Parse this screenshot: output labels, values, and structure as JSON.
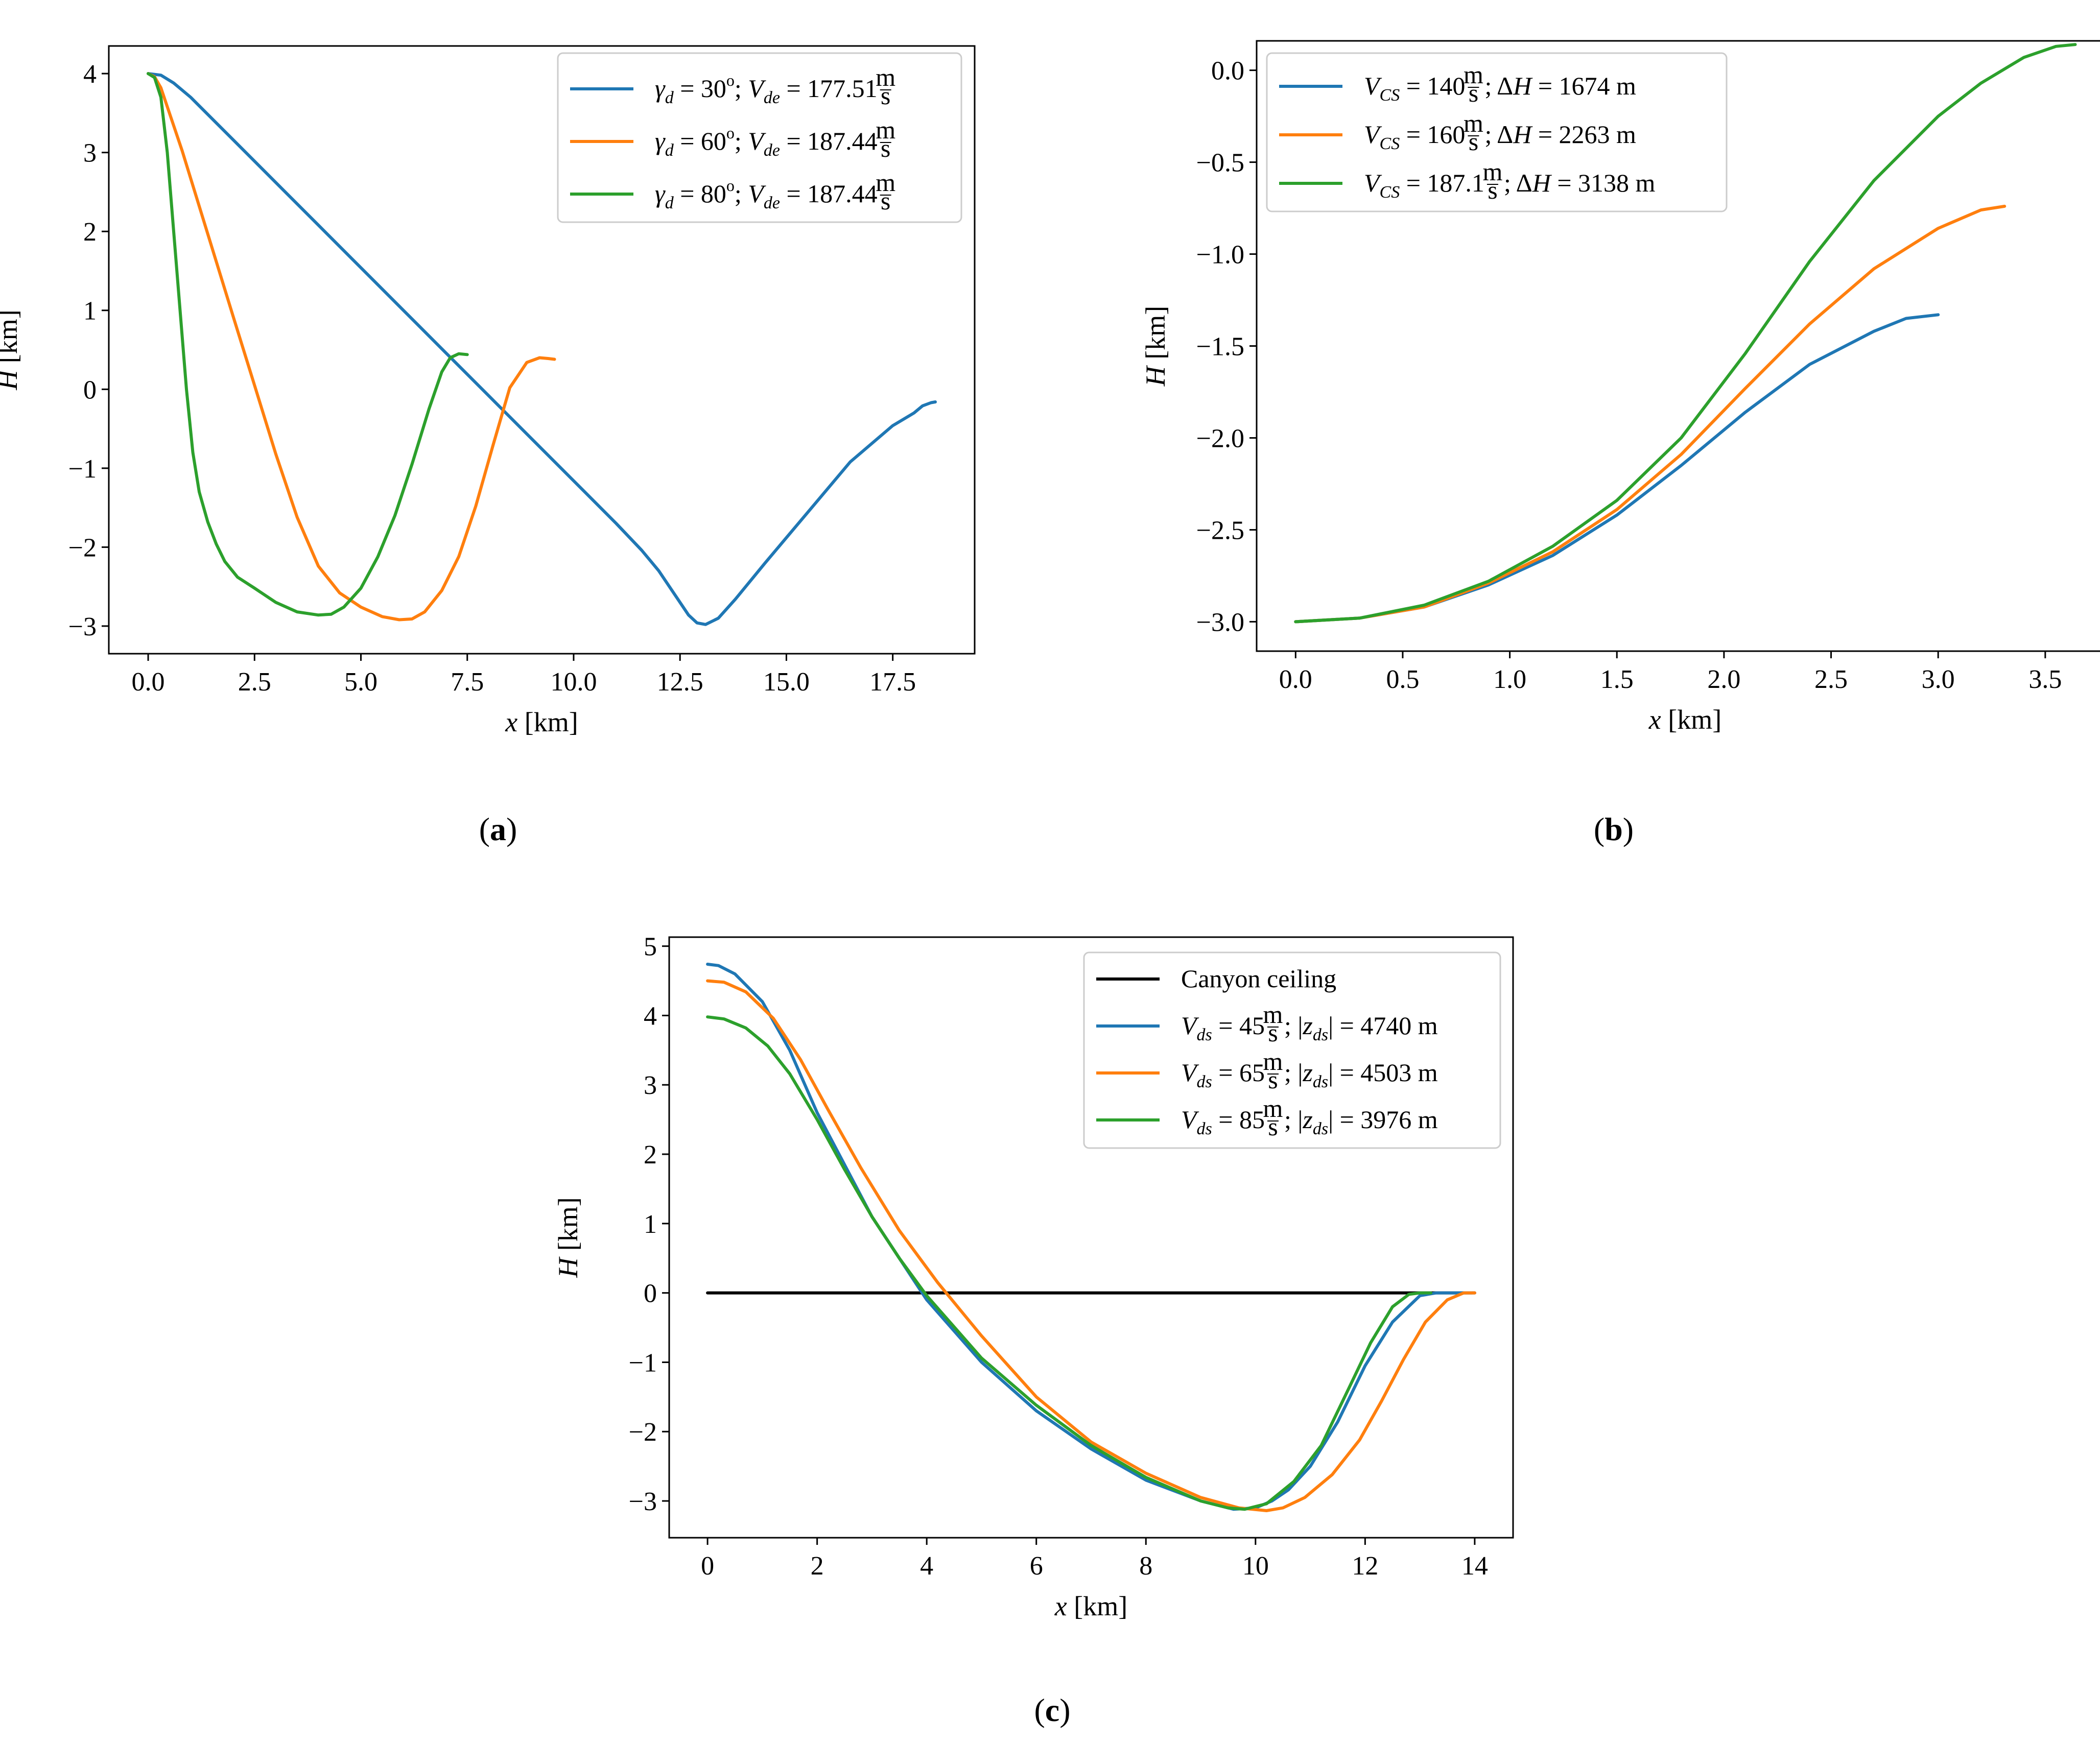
{
  "figure": {
    "colors": {
      "blue": "#1f77b4",
      "orange": "#ff7f0e",
      "green": "#2ca02c",
      "black": "#000000"
    }
  },
  "chart_data": [
    {
      "id": "a",
      "type": "line",
      "panel_label": {
        "open": "(",
        "letter": "a",
        "close": ")"
      },
      "xlabel": {
        "var": "x",
        "unit": "[km]"
      },
      "ylabel": {
        "var": "H",
        "unit": "[km]"
      },
      "xlim": [
        -0.925,
        19.425
      ],
      "ylim": [
        -3.35,
        4.35
      ],
      "xticks": [
        0,
        2.5,
        5,
        7.5,
        10,
        12.5,
        15,
        17.5
      ],
      "xtick_labels": [
        "0.0",
        "2.5",
        "5.0",
        "7.5",
        "10.0",
        "12.5",
        "15.0",
        "17.5"
      ],
      "yticks": [
        -3,
        -2,
        -1,
        0,
        1,
        2,
        3,
        4
      ],
      "ytick_labels": [
        "−3",
        "−2",
        "−1",
        "0",
        "1",
        "2",
        "3",
        "4"
      ],
      "legend_position": "top-right",
      "series": [
        {
          "name": "γd=30°; Vde=177.51 m/s",
          "legend": {
            "sym": "γ",
            "sub": "d",
            "eq1": " = 30",
            "deg": "o",
            "sep": "; ",
            "sym2": "V",
            "sub2": "de",
            "eq2": " = 177.51 ",
            "frac_num": "m",
            "frac_den": "s",
            "tail": ""
          },
          "color": "blue",
          "x": [
            0,
            0.3,
            0.6,
            1,
            2,
            3,
            4,
            5,
            6,
            7,
            8,
            9,
            10,
            11,
            11.6,
            12,
            12.4,
            12.7,
            12.9,
            13.1,
            13.4,
            13.8,
            14.5,
            15.5,
            16.5,
            17.5,
            18,
            18.2,
            18.4,
            18.5
          ],
          "y": [
            4,
            3.98,
            3.88,
            3.7,
            3.16,
            2.62,
            2.08,
            1.54,
            1.0,
            0.46,
            -0.08,
            -0.62,
            -1.16,
            -1.7,
            -2.04,
            -2.3,
            -2.62,
            -2.86,
            -2.96,
            -2.98,
            -2.9,
            -2.66,
            -2.2,
            -1.56,
            -0.92,
            -0.46,
            -0.3,
            -0.21,
            -0.17,
            -0.16
          ]
        },
        {
          "name": "γd=60°; Vde=187.44 m/s",
          "legend": {
            "sym": "γ",
            "sub": "d",
            "eq1": " = 60",
            "deg": "o",
            "sep": "; ",
            "sym2": "V",
            "sub2": "de",
            "eq2": " = 187.44 ",
            "frac_num": "m",
            "frac_den": "s",
            "tail": ""
          },
          "color": "orange",
          "x": [
            0,
            0.15,
            0.3,
            0.5,
            0.8,
            1.2,
            1.6,
            2,
            2.5,
            3,
            3.5,
            4,
            4.5,
            5,
            5.5,
            5.9,
            6.2,
            6.5,
            6.9,
            7.3,
            7.7,
            8.1,
            8.5,
            8.9,
            9.2,
            9.4,
            9.55
          ],
          "y": [
            4,
            3.96,
            3.82,
            3.5,
            3.02,
            2.32,
            1.62,
            0.92,
            0.05,
            -0.82,
            -1.62,
            -2.24,
            -2.58,
            -2.76,
            -2.88,
            -2.92,
            -2.91,
            -2.82,
            -2.55,
            -2.12,
            -1.48,
            -0.72,
            0.02,
            0.34,
            0.4,
            0.39,
            0.38
          ]
        },
        {
          "name": "γd=80°; Vde=187.44 m/s",
          "legend": {
            "sym": "γ",
            "sub": "d",
            "eq1": " = 80",
            "deg": "o",
            "sep": "; ",
            "sym2": "V",
            "sub2": "de",
            "eq2": " = 187.44 ",
            "frac_num": "m",
            "frac_den": "s",
            "tail": ""
          },
          "color": "green",
          "x": [
            0,
            0.15,
            0.3,
            0.45,
            0.6,
            0.75,
            0.9,
            1.05,
            1.2,
            1.4,
            1.6,
            1.8,
            2.1,
            2.5,
            3,
            3.5,
            4,
            4.3,
            4.6,
            5,
            5.4,
            5.8,
            6.2,
            6.6,
            6.9,
            7.1,
            7.3,
            7.5
          ],
          "y": [
            4,
            3.95,
            3.7,
            3.0,
            2.0,
            1.0,
            0.0,
            -0.8,
            -1.3,
            -1.68,
            -1.96,
            -2.18,
            -2.38,
            -2.52,
            -2.7,
            -2.82,
            -2.86,
            -2.85,
            -2.76,
            -2.52,
            -2.12,
            -1.6,
            -0.95,
            -0.25,
            0.22,
            0.4,
            0.45,
            0.44
          ]
        }
      ]
    },
    {
      "id": "b",
      "type": "line",
      "panel_label": {
        "open": "(",
        "letter": "b",
        "close": ")"
      },
      "xlabel": {
        "var": "x",
        "unit": "[km]"
      },
      "ylabel": {
        "var": "H",
        "unit": "[km]"
      },
      "xlim": [
        -0.182,
        3.82
      ],
      "ylim": [
        -3.16,
        0.16
      ],
      "xticks": [
        0,
        0.5,
        1,
        1.5,
        2,
        2.5,
        3,
        3.5
      ],
      "xtick_labels": [
        "0.0",
        "0.5",
        "1.0",
        "1.5",
        "2.0",
        "2.5",
        "3.0",
        "3.5"
      ],
      "yticks": [
        -3,
        -2.5,
        -2,
        -1.5,
        -1,
        -0.5,
        0
      ],
      "ytick_labels": [
        "−3.0",
        "−2.5",
        "−2.0",
        "−1.5",
        "−1.0",
        "−0.5",
        "0.0"
      ],
      "legend_position": "top-left",
      "series": [
        {
          "name": "VCS=140 m/s; ΔH=1674 m",
          "legend": {
            "sym": "V",
            "sub": "CS",
            "eq1": " = 140 ",
            "frac_num": "m",
            "frac_den": "s",
            "tail": "; ΔH = 1674 m"
          },
          "color": "blue",
          "x": [
            0,
            0.3,
            0.6,
            0.9,
            1.2,
            1.5,
            1.8,
            2.1,
            2.4,
            2.7,
            2.85,
            3.0
          ],
          "y": [
            -3.0,
            -2.98,
            -2.92,
            -2.8,
            -2.64,
            -2.42,
            -2.15,
            -1.86,
            -1.6,
            -1.42,
            -1.35,
            -1.33
          ]
        },
        {
          "name": "VCS=160 m/s; ΔH=2263 m",
          "legend": {
            "sym": "V",
            "sub": "CS",
            "eq1": " = 160 ",
            "frac_num": "m",
            "frac_den": "s",
            "tail": "; ΔH = 2263 m"
          },
          "color": "orange",
          "x": [
            0,
            0.3,
            0.6,
            0.9,
            1.2,
            1.5,
            1.8,
            2.1,
            2.4,
            2.7,
            3.0,
            3.2,
            3.31
          ],
          "y": [
            -3.0,
            -2.98,
            -2.92,
            -2.79,
            -2.62,
            -2.39,
            -2.09,
            -1.73,
            -1.38,
            -1.08,
            -0.86,
            -0.76,
            -0.74
          ]
        },
        {
          "name": "VCS=187.1 m/s; ΔH=3138 m",
          "legend": {
            "sym": "V",
            "sub": "CS",
            "eq1": " = 187.1 ",
            "frac_num": "m",
            "frac_den": "s",
            "tail": "; ΔH = 3138 m"
          },
          "color": "green",
          "x": [
            0,
            0.3,
            0.6,
            0.9,
            1.2,
            1.5,
            1.8,
            2.1,
            2.4,
            2.7,
            3.0,
            3.2,
            3.4,
            3.55,
            3.64
          ],
          "y": [
            -3.0,
            -2.98,
            -2.91,
            -2.78,
            -2.59,
            -2.34,
            -2.0,
            -1.54,
            -1.04,
            -0.6,
            -0.25,
            -0.07,
            0.07,
            0.13,
            0.14
          ]
        }
      ]
    },
    {
      "id": "c",
      "type": "line",
      "panel_label": {
        "open": "(",
        "letter": "c",
        "close": ")"
      },
      "xlabel": {
        "var": "x",
        "unit": "[km]"
      },
      "ylabel": {
        "var": "H",
        "unit": "[km]"
      },
      "xlim": [
        -0.7,
        14.7
      ],
      "ylim": [
        -3.53,
        5.13
      ],
      "xticks": [
        0,
        2,
        4,
        6,
        8,
        10,
        12,
        14
      ],
      "xtick_labels": [
        "0",
        "2",
        "4",
        "6",
        "8",
        "10",
        "12",
        "14"
      ],
      "yticks": [
        -3,
        -2,
        -1,
        0,
        1,
        2,
        3,
        4,
        5
      ],
      "ytick_labels": [
        "−3",
        "−2",
        "−1",
        "0",
        "1",
        "2",
        "3",
        "4",
        "5"
      ],
      "legend_position": "top-right",
      "series": [
        {
          "name": "Canyon ceiling",
          "legend": {
            "plain": "Canyon ceiling"
          },
          "color": "black",
          "x": [
            0,
            14
          ],
          "y": [
            0,
            0
          ]
        },
        {
          "name": "Vds=45 m/s; |zds|=4740 m",
          "legend": {
            "sym": "V",
            "sub": "ds",
            "eq1": " = 45 ",
            "frac_num": "m",
            "frac_den": "s",
            "tail": "; |z",
            "tail_sub": "ds",
            "tail2": "| = 4740 m"
          },
          "color": "blue",
          "x": [
            0,
            0.2,
            0.5,
            1,
            1.5,
            2,
            3,
            4,
            5,
            6,
            7,
            8,
            9,
            9.6,
            10,
            10.3,
            10.6,
            11,
            11.5,
            12,
            12.5,
            13,
            13.3,
            13.6,
            13.8,
            13.95
          ],
          "y": [
            4.74,
            4.72,
            4.6,
            4.2,
            3.5,
            2.6,
            1.1,
            -0.1,
            -1.0,
            -1.7,
            -2.25,
            -2.7,
            -3.0,
            -3.12,
            -3.1,
            -3.0,
            -2.84,
            -2.5,
            -1.86,
            -1.05,
            -0.42,
            -0.04,
            0.0,
            0.0,
            0.0,
            0.0
          ]
        },
        {
          "name": "Vds=65 m/s; |zds|=4503 m",
          "legend": {
            "sym": "V",
            "sub": "ds",
            "eq1": " = 65 ",
            "frac_num": "m",
            "frac_den": "s",
            "tail": "; |z",
            "tail_sub": "ds",
            "tail2": "| = 4503 m"
          },
          "color": "orange",
          "x": [
            0,
            0.3,
            0.7,
            1.2,
            1.7,
            2.2,
            2.8,
            3.5,
            4.2,
            5,
            6,
            7,
            8,
            9,
            9.7,
            10.2,
            10.5,
            10.9,
            11.4,
            11.9,
            12.3,
            12.7,
            13.1,
            13.5,
            13.8,
            14.0
          ],
          "y": [
            4.5,
            4.48,
            4.34,
            3.96,
            3.36,
            2.64,
            1.8,
            0.9,
            0.15,
            -0.62,
            -1.5,
            -2.15,
            -2.6,
            -2.95,
            -3.1,
            -3.14,
            -3.1,
            -2.95,
            -2.62,
            -2.12,
            -1.56,
            -0.96,
            -0.42,
            -0.1,
            0.0,
            0.0
          ]
        },
        {
          "name": "Vds=85 m/s; |zds|=3976 m",
          "legend": {
            "sym": "V",
            "sub": "ds",
            "eq1": " = 85 ",
            "frac_num": "m",
            "frac_den": "s",
            "tail": "; |z",
            "tail_sub": "ds",
            "tail2": "| = 3976 m"
          },
          "color": "green",
          "x": [
            0,
            0.3,
            0.7,
            1.1,
            1.5,
            2,
            2.5,
            3,
            3.5,
            4,
            5,
            6,
            7,
            8,
            9,
            9.5,
            9.8,
            10.2,
            10.7,
            11.2,
            11.7,
            12.1,
            12.5,
            12.8,
            13.0,
            13.2
          ],
          "y": [
            3.98,
            3.95,
            3.82,
            3.56,
            3.16,
            2.5,
            1.78,
            1.1,
            0.5,
            -0.04,
            -0.94,
            -1.62,
            -2.2,
            -2.66,
            -3.0,
            -3.1,
            -3.12,
            -3.04,
            -2.72,
            -2.2,
            -1.38,
            -0.72,
            -0.2,
            -0.02,
            0.0,
            0.0
          ]
        }
      ]
    }
  ]
}
